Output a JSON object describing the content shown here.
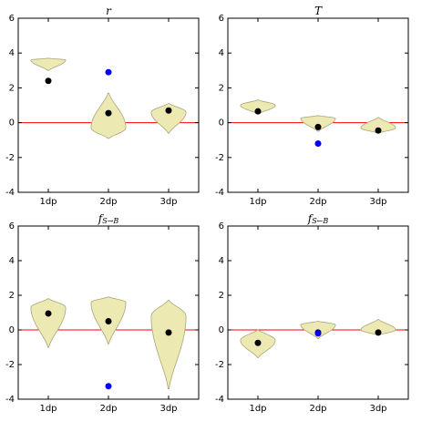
{
  "chart_data": [
    {
      "type": "violin",
      "title": "r",
      "categories": [
        "1dp",
        "2dp",
        "3dp"
      ],
      "violins": {
        "min": [
          3.0,
          -0.9,
          -0.6
        ],
        "mode": [
          3.6,
          -0.3,
          0.6
        ],
        "max": [
          3.7,
          1.7,
          1.1
        ]
      },
      "violin_color": "#ede9b3",
      "series": [
        {
          "color": "#000000",
          "values": [
            2.4,
            0.55,
            0.7
          ]
        },
        {
          "color": "#0000ff",
          "values": [
            null,
            2.9,
            null
          ]
        }
      ],
      "hline": 0,
      "hline_color": "#ff0000",
      "ylim": [
        -4,
        6
      ],
      "yticks": [
        -4,
        -2,
        0,
        2,
        4,
        6
      ]
    },
    {
      "type": "violin",
      "title": "T",
      "categories": [
        "1dp",
        "2dp",
        "3dp"
      ],
      "violins": {
        "min": [
          0.5,
          -0.5,
          -0.6
        ],
        "mode": [
          1.0,
          0.25,
          -0.3
        ],
        "max": [
          1.3,
          0.4,
          0.3
        ]
      },
      "violin_color": "#ede9b3",
      "series": [
        {
          "color": "#000000",
          "values": [
            0.65,
            -0.25,
            -0.45
          ]
        },
        {
          "color": "#0000ff",
          "values": [
            null,
            -1.2,
            null
          ]
        }
      ],
      "hline": 0,
      "hline_color": "#ff0000",
      "ylim": [
        -4,
        6
      ],
      "yticks": [
        -4,
        -2,
        0,
        2,
        4,
        6
      ]
    },
    {
      "type": "violin",
      "title": "f",
      "title_sub": "S→B",
      "categories": [
        "1dp",
        "2dp",
        "3dp"
      ],
      "violins": {
        "min": [
          -1.0,
          -0.8,
          -3.4
        ],
        "mode": [
          1.3,
          1.6,
          0.8
        ],
        "max": [
          1.8,
          1.9,
          1.7
        ]
      },
      "violin_color": "#ede9b3",
      "series": [
        {
          "color": "#000000",
          "values": [
            0.95,
            0.5,
            -0.15
          ]
        },
        {
          "color": "#0000ff",
          "values": [
            null,
            -3.25,
            null
          ]
        }
      ],
      "hline": 0,
      "hline_color": "#ff0000",
      "ylim": [
        -4,
        6
      ],
      "yticks": [
        -4,
        -2,
        0,
        2,
        4,
        6
      ]
    },
    {
      "type": "violin",
      "title": "f",
      "title_sub": "S←B",
      "categories": [
        "1dp",
        "2dp",
        "3dp"
      ],
      "violins": {
        "min": [
          -1.6,
          -0.5,
          -0.3
        ],
        "mode": [
          -0.6,
          0.3,
          0.0
        ],
        "max": [
          0.0,
          0.5,
          0.6
        ]
      },
      "violin_color": "#ede9b3",
      "series": [
        {
          "color": "#000000",
          "values": [
            -0.75,
            -0.15,
            -0.15
          ]
        },
        {
          "color": "#0000ff",
          "values": [
            null,
            -0.2,
            null
          ]
        }
      ],
      "hline": 0,
      "hline_color": "#ff0000",
      "ylim": [
        -4,
        6
      ],
      "yticks": [
        -4,
        -2,
        0,
        2,
        4,
        6
      ]
    }
  ]
}
